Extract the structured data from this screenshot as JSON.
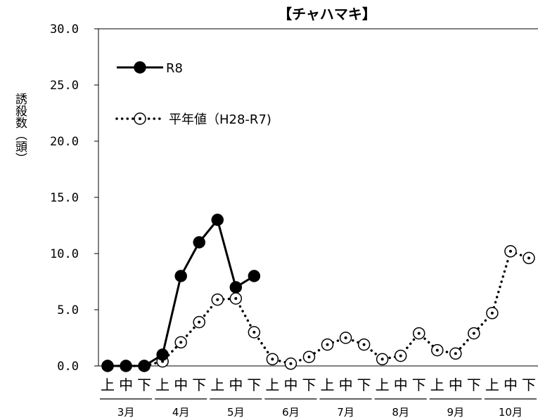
{
  "chart_data": {
    "type": "line",
    "title": "【チャハマキ】",
    "ylabel": "誘殺数（頭）",
    "ylim": [
      0,
      30
    ],
    "yticks": [
      "0.0",
      "5.0",
      "10.0",
      "15.0",
      "20.0",
      "25.0",
      "30.0"
    ],
    "categories": [
      "上",
      "中",
      "下",
      "上",
      "中",
      "下",
      "上",
      "中",
      "下",
      "上",
      "中",
      "下",
      "上",
      "中",
      "下",
      "上",
      "中",
      "下",
      "上",
      "中",
      "下",
      "上",
      "中",
      "下"
    ],
    "months": [
      "3月",
      "4月",
      "5月",
      "6月",
      "7月",
      "8月",
      "9月",
      "10月"
    ],
    "legend_position": "top-left",
    "series": [
      {
        "name": "R8",
        "style": "solid-filled",
        "color": "#000000",
        "values": [
          0,
          0,
          0,
          1,
          8,
          11,
          13,
          7,
          8,
          null,
          null,
          null,
          null,
          null,
          null,
          null,
          null,
          null,
          null,
          null,
          null,
          null,
          null,
          null
        ]
      },
      {
        "name": "平年値（H28-R7)",
        "style": "dotted-open",
        "color": "#000000",
        "values": [
          0,
          0,
          0,
          0.4,
          2.1,
          3.9,
          5.9,
          6.0,
          3.0,
          0.6,
          0.2,
          0.8,
          1.9,
          2.5,
          1.9,
          0.6,
          0.9,
          2.9,
          1.4,
          1.1,
          2.9,
          4.7,
          10.2,
          9.6
        ]
      }
    ]
  }
}
